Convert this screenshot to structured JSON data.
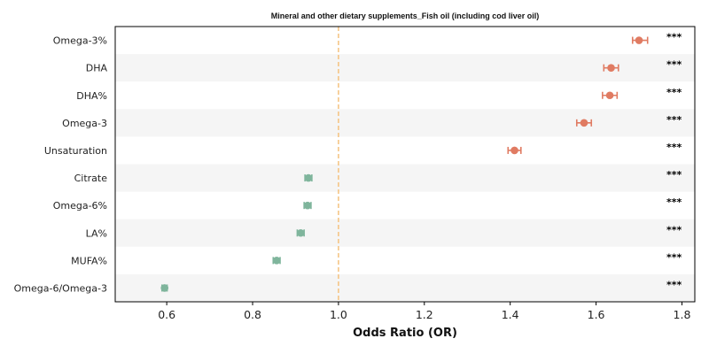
{
  "chart_data": {
    "type": "forest",
    "title": "Mineral and other dietary supplements_Fish oil (including cod liver oil)",
    "xlabel": "Odds Ratio (OR)",
    "xlim": [
      0.48,
      1.83
    ],
    "xticks": [
      "0.6",
      "0.8",
      "1.0",
      "1.2",
      "1.4",
      "1.6",
      "1.8"
    ],
    "reference_line": 1.0,
    "categories": [
      "Omega-3%",
      "DHA",
      "DHA%",
      "Omega-3",
      "Unsaturation",
      "Citrate",
      "Omega-6%",
      "LA%",
      "MUFA%",
      "Omega-6/Omega-3"
    ],
    "or": [
      1.7,
      1.635,
      1.632,
      1.572,
      1.41,
      0.93,
      0.928,
      0.912,
      0.856,
      0.595
    ],
    "ci_low": [
      1.685,
      1.618,
      1.615,
      1.555,
      1.395,
      0.922,
      0.92,
      0.904,
      0.848,
      0.589
    ],
    "ci_high": [
      1.72,
      1.652,
      1.649,
      1.589,
      1.425,
      0.938,
      0.936,
      0.92,
      0.864,
      0.601
    ],
    "significance": [
      "***",
      "***",
      "***",
      "***",
      "***",
      "***",
      "***",
      "***",
      "***",
      "***"
    ],
    "colors": {
      "positive": "#e07b62",
      "negative": "#7fb59c",
      "reference": "#f5c27e",
      "band": "#f5f5f5"
    }
  }
}
